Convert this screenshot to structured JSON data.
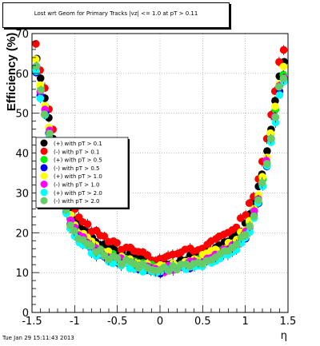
{
  "title": "Lost wrt Geom for Primary Tracks |vz| <= 1.0 at pT > 0.11",
  "timestamp": "Tue Jan 29 15:11:43 2013",
  "chart_data": {
    "type": "scatter",
    "xlabel": "η",
    "ylabel": "Efficiency (%)",
    "xlim": [
      -1.5,
      1.5
    ],
    "ylim": [
      0,
      70
    ],
    "xticks": [
      "-1.5",
      "-1",
      "-0.5",
      "0",
      "0.5",
      "1",
      "1.5"
    ],
    "xtick_values": [
      -1.5,
      -1,
      -0.5,
      0,
      0.5,
      1,
      1.5
    ],
    "yticks": [
      "0",
      "10",
      "20",
      "30",
      "40",
      "50",
      "60",
      "70"
    ],
    "ytick_values": [
      0,
      10,
      20,
      30,
      40,
      50,
      60,
      70
    ],
    "grid": true,
    "legend_position": "middle-left",
    "series": [
      {
        "name": "(+) with pT > 0.1",
        "color": "#000000",
        "offset": 1.0
      },
      {
        "name": "(-) with pT > 0.1",
        "color": "#ff0000",
        "offset": 3.0
      },
      {
        "name": "(+) with pT > 0.5",
        "color": "#00ee00",
        "offset": -0.5
      },
      {
        "name": "(-) with pT > 0.5",
        "color": "#0000ff",
        "offset": -1.5
      },
      {
        "name": "(+) with pT > 1.0",
        "color": "#ffff00",
        "offset": 0.0
      },
      {
        "name": "(-) with pT > 1.0",
        "color": "#ff00ff",
        "offset": -1.0
      },
      {
        "name": "(+) with pT > 2.0",
        "color": "#00ffff",
        "offset": -2.0
      },
      {
        "name": "(-) with pT > 2.0",
        "color": "#66cc66",
        "offset": -1.2
      }
    ],
    "x": [
      -1.45,
      -1.4,
      -1.35,
      -1.3,
      -1.25,
      -1.2,
      -1.15,
      -1.1,
      -1.05,
      -1.0,
      -0.95,
      -0.9,
      -0.85,
      -0.8,
      -0.75,
      -0.7,
      -0.65,
      -0.6,
      -0.55,
      -0.5,
      -0.45,
      -0.4,
      -0.35,
      -0.3,
      -0.25,
      -0.2,
      -0.15,
      -0.1,
      -0.05,
      0.0,
      0.05,
      0.1,
      0.15,
      0.2,
      0.25,
      0.3,
      0.35,
      0.4,
      0.45,
      0.5,
      0.55,
      0.6,
      0.65,
      0.7,
      0.75,
      0.8,
      0.85,
      0.9,
      0.95,
      1.0,
      1.05,
      1.1,
      1.15,
      1.2,
      1.25,
      1.3,
      1.35,
      1.4,
      1.45
    ],
    "base_y": [
      63,
      57,
      52,
      47,
      42,
      36,
      31,
      27,
      24,
      22,
      20.5,
      19.5,
      18.5,
      17.5,
      16.8,
      16.2,
      15.6,
      15.0,
      14.5,
      14.2,
      13.9,
      13.5,
      13.2,
      12.9,
      12.6,
      12.3,
      12.0,
      11.8,
      11.5,
      11.2,
      11.5,
      11.8,
      12.0,
      12.2,
      12.5,
      12.8,
      13.0,
      13.3,
      13.6,
      14.0,
      14.3,
      14.7,
      15.1,
      15.6,
      16.2,
      16.8,
      17.6,
      18.5,
      19.6,
      21,
      23,
      26,
      30,
      34,
      39,
      45,
      51,
      58,
      61
    ]
  }
}
